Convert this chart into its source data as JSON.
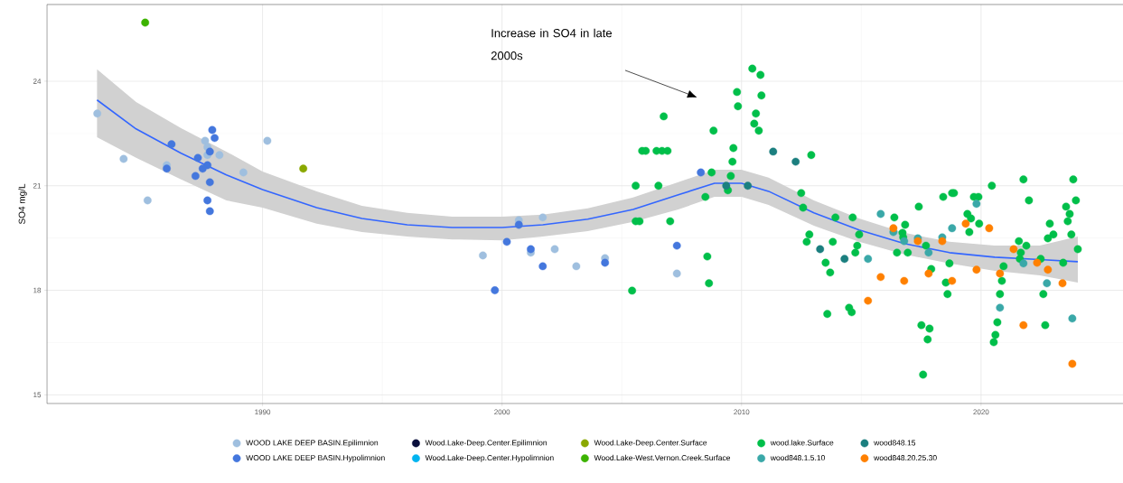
{
  "chart_data": {
    "type": "scatter",
    "ylabel": "SO4  mg/L",
    "xlim": [
      1981,
      2026
    ],
    "ylim": [
      14.75,
      26.2
    ],
    "xticks": [
      1990,
      2000,
      2010,
      2020
    ],
    "yticks": [
      15,
      18,
      21,
      24
    ],
    "grid": true,
    "legend": "bottom",
    "marker": "circle",
    "annotations": [
      "Increase in SO4 in late 2000s"
    ],
    "series": [
      {
        "name": "WOOD LAKE DEEP BASIN.Epilimnion",
        "color": "#9fbfdf",
        "x": [
          1983.1,
          1984.2,
          1985.2,
          1986.0,
          1987.6,
          1987.7,
          1987.7,
          1988.2,
          1989.2,
          1990.2,
          1999.2,
          2000.7,
          2001.2,
          2001.7,
          2002.2,
          2003.1,
          2004.3,
          2007.3
        ],
        "values": [
          23.07,
          21.77,
          20.58,
          21.59,
          22.29,
          22.11,
          21.88,
          21.88,
          21.38,
          22.29,
          19.0,
          20.01,
          19.08,
          20.09,
          19.18,
          18.69,
          18.92,
          18.48
        ]
      },
      {
        "name": "WOOD LAKE DEEP BASIN.Hypolimnion",
        "color": "#4477dd",
        "x": [
          1986.2,
          1986.0,
          1987.9,
          1988.0,
          1987.8,
          1987.3,
          1987.7,
          1987.2,
          1987.8,
          1987.7,
          1987.8,
          1987.5,
          1999.7,
          2000.2,
          2000.7,
          2001.2,
          2001.7,
          2004.3,
          2007.3,
          2008.3
        ],
        "values": [
          22.19,
          21.49,
          22.6,
          22.37,
          21.98,
          21.8,
          21.59,
          21.28,
          21.1,
          20.58,
          20.27,
          21.49,
          18.0,
          19.39,
          19.88,
          19.18,
          18.69,
          18.79,
          19.28,
          21.38
        ]
      },
      {
        "name": "Wood.Lake-Deep.Center.Epilimnion",
        "color": "#0a0f3c"
      },
      {
        "name": "Wood.Lake-Deep.Center.Hypolimnion",
        "color": "#00b4f0"
      },
      {
        "name": "Wood.Lake-Deep.Center.Surface",
        "color": "#8aa800",
        "x": [
          1991.7
        ],
        "values": [
          21.49
        ]
      },
      {
        "name": "Wood.Lake-West.Vernon.Creek.Surface",
        "color": "#3cb300",
        "x": [
          1985.1
        ],
        "values": [
          25.68
        ]
      },
      {
        "name": "wood.lake.Surface",
        "color": "#00bf4a",
        "x": [
          2010.45,
          2010.79,
          2009.81,
          2010.83,
          2009.85,
          2010.6,
          2006.75,
          2010.53,
          2010.72,
          2008.83,
          2009.66,
          2005.85,
          2006.0,
          2006.45,
          2006.68,
          2006.91,
          2012.91,
          2009.62,
          2008.75,
          2009.55,
          2005.58,
          2006.53,
          2009.43,
          2008.49,
          2012.49,
          2012.57,
          2005.74,
          2005.58,
          2007.02,
          2013.92,
          2012.83,
          2012.72,
          2013.81,
          2008.57,
          2013.51,
          2013.7,
          2008.64,
          2005.43,
          2013.58,
          2014.64,
          2014.91,
          2014.83,
          2014.75,
          2014.49,
          2014.6,
          2016.38,
          2016.83,
          2016.72,
          2016.75,
          2016.49,
          2016.94,
          2017.4,
          2018.42,
          2018.79,
          2018.87,
          2017.7,
          2017.92,
          2018.68,
          2018.53,
          2018.6,
          2017.51,
          2017.85,
          2017.77,
          2017.58,
          2019.7,
          2019.89,
          2019.43,
          2019.58,
          2019.92,
          2019.51,
          2020.45,
          2021.77,
          2023.85,
          2022.0,
          2023.96,
          2023.55,
          2023.7,
          2023.62,
          2022.87,
          2022.79,
          2023.02,
          2023.77,
          2024.04,
          2021.58,
          2021.89,
          2021.66,
          2021.62,
          2022.49,
          2020.94,
          2023.43,
          2020.87,
          2020.79,
          2022.6,
          2020.68,
          2022.68,
          2020.6,
          2020.53
        ],
        "values": [
          24.36,
          24.18,
          23.69,
          23.59,
          23.28,
          23.07,
          22.99,
          22.78,
          22.58,
          22.58,
          22.08,
          22.0,
          22.0,
          22.0,
          22.0,
          22.0,
          21.88,
          21.69,
          21.38,
          21.28,
          21.0,
          21.0,
          20.87,
          20.68,
          20.79,
          20.37,
          19.98,
          19.98,
          19.98,
          20.09,
          19.6,
          19.39,
          19.39,
          18.97,
          18.79,
          18.51,
          18.2,
          17.99,
          17.32,
          20.09,
          19.6,
          19.28,
          19.08,
          17.5,
          17.37,
          20.09,
          19.88,
          19.65,
          19.52,
          19.08,
          19.08,
          20.4,
          20.68,
          20.79,
          20.79,
          19.28,
          18.61,
          18.77,
          18.22,
          17.89,
          17.0,
          16.9,
          16.59,
          15.58,
          20.68,
          20.68,
          20.19,
          20.06,
          19.91,
          19.67,
          21.0,
          21.18,
          21.18,
          20.58,
          20.58,
          20.4,
          20.19,
          19.98,
          19.91,
          19.49,
          19.6,
          19.6,
          19.18,
          19.41,
          19.28,
          19.08,
          18.9,
          18.9,
          18.69,
          18.79,
          18.27,
          17.89,
          17.89,
          17.08,
          17.0,
          16.72,
          16.51
        ]
      },
      {
        "name": "wood848.1.5.10",
        "color": "#3aa8a8",
        "x": [
          2015.81,
          2015.28,
          2016.34,
          2016.79,
          2017.36,
          2017.81,
          2018.38,
          2018.79,
          2019.81,
          2021.77,
          2022.75,
          2020.79,
          2023.81
        ],
        "values": [
          20.19,
          18.9,
          19.67,
          19.41,
          19.49,
          19.08,
          19.52,
          19.78,
          20.48,
          18.77,
          18.2,
          17.5,
          17.19
        ]
      },
      {
        "name": "wood848.15",
        "color": "#1b7f7f",
        "x": [
          2011.32,
          2012.26,
          2009.36,
          2010.26,
          2013.28,
          2014.3
        ],
        "values": [
          21.98,
          21.69,
          21.0,
          21.0,
          19.18,
          18.9
        ]
      },
      {
        "name": "wood848.20.25.30",
        "color": "#ff8000",
        "x": [
          2016.34,
          2015.81,
          2015.28,
          2016.79,
          2017.36,
          2017.81,
          2018.38,
          2018.79,
          2019.36,
          2019.81,
          2020.34,
          2021.36,
          2020.79,
          2022.34,
          2022.79,
          2023.4,
          2021.77,
          2023.81
        ],
        "values": [
          19.78,
          18.38,
          17.7,
          18.27,
          19.41,
          18.48,
          19.41,
          18.27,
          19.91,
          18.59,
          19.78,
          19.18,
          18.48,
          18.79,
          18.59,
          18.2,
          17.0,
          15.89
        ]
      },
      {
        "type": "line",
        "marker": "none",
        "color": "#3366ff",
        "x": [
          1983.09,
          1984.72,
          1986.6,
          1988.49,
          1990,
          1992.26,
          1994.15,
          1996.04,
          1997.92,
          2000,
          2001.7,
          2003.58,
          2005.47,
          2007.36,
          2008.87,
          2010,
          2011.13,
          2013.02,
          2014.91,
          2016.79,
          2018.68,
          2020.57,
          2022.45,
          2024.04
        ],
        "values": [
          23.46,
          22.63,
          21.93,
          21.31,
          20.89,
          20.37,
          20.06,
          19.88,
          19.8,
          19.8,
          19.88,
          20.04,
          20.32,
          20.74,
          21.07,
          21.07,
          20.84,
          20.22,
          19.73,
          19.34,
          19.08,
          18.95,
          18.88,
          18.82
        ],
        "upper": [
          24.34,
          23.4,
          22.65,
          21.98,
          21.41,
          20.84,
          20.42,
          20.22,
          20.11,
          20.11,
          20.17,
          20.35,
          20.66,
          21.1,
          21.46,
          21.46,
          21.23,
          20.58,
          20.06,
          19.65,
          19.39,
          19.28,
          19.28,
          19.54
        ],
        "lower": [
          22.39,
          21.8,
          21.18,
          20.58,
          20.37,
          19.91,
          19.67,
          19.54,
          19.46,
          19.43,
          19.54,
          19.7,
          19.96,
          20.32,
          20.68,
          20.68,
          20.45,
          19.85,
          19.39,
          19.03,
          18.77,
          18.56,
          18.43,
          18.22
        ]
      }
    ]
  }
}
